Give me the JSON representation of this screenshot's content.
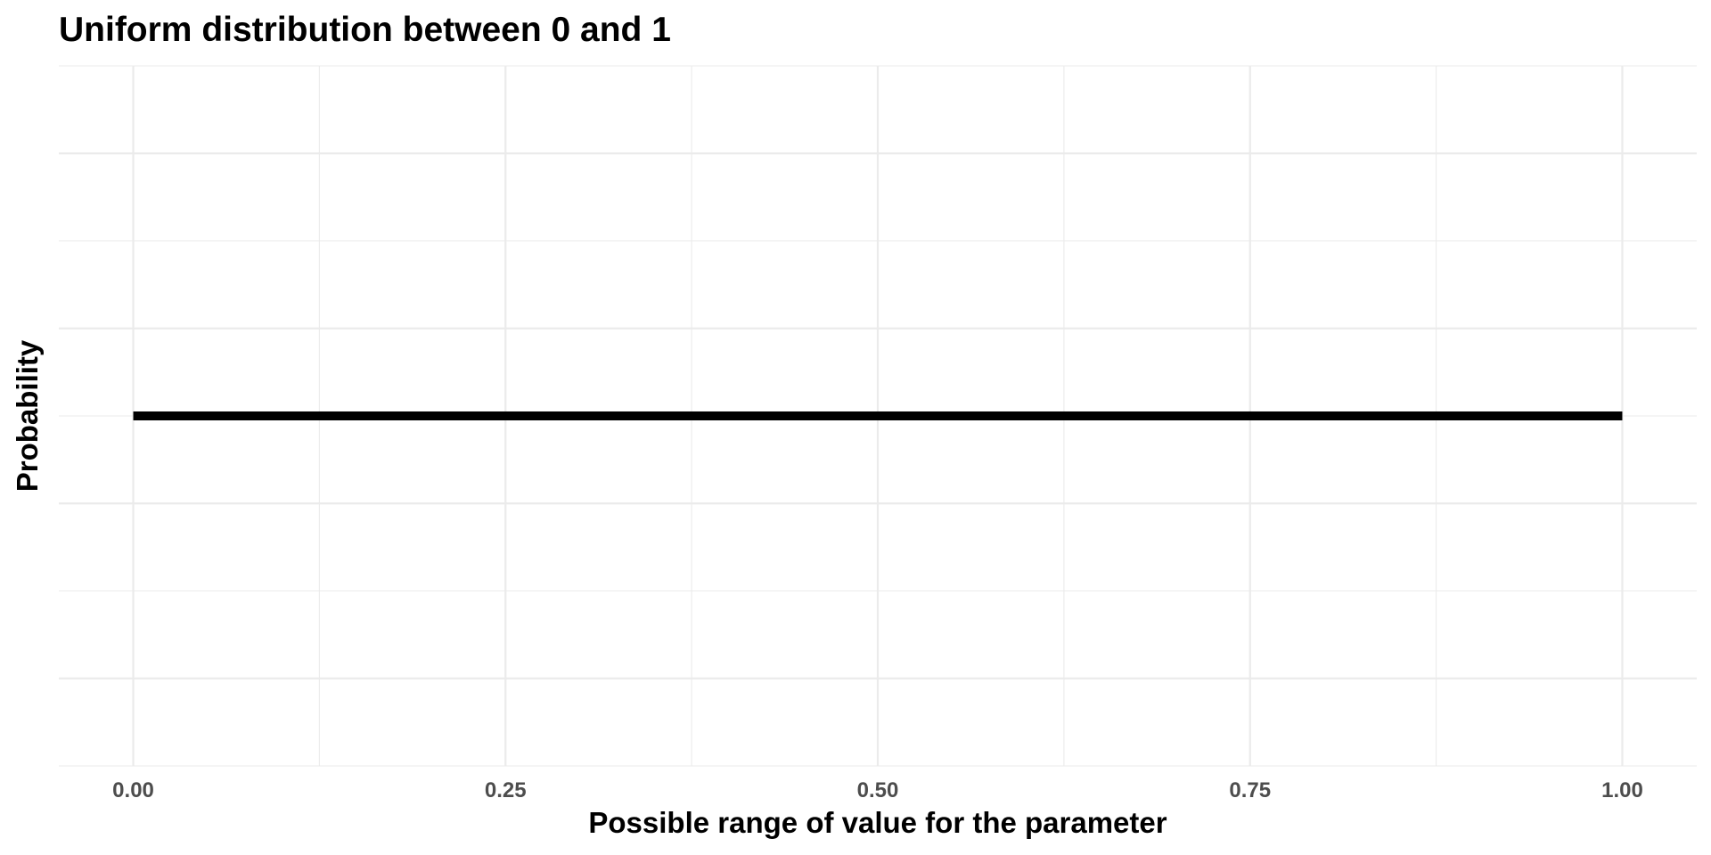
{
  "chart_data": {
    "type": "line",
    "title": "Uniform distribution between 0 and 1",
    "xlabel": "Possible range of value for the parameter",
    "ylabel": "Probability",
    "xlim": [
      -0.05,
      1.05
    ],
    "x_ticks": [
      0,
      0.25,
      0.5,
      0.75,
      1.0
    ],
    "x_tick_labels": [
      "0.00",
      "0.25",
      "0.50",
      "0.75",
      "1.00"
    ],
    "y_ticks_labeled": false,
    "grid": true,
    "series": [
      {
        "x": [
          0,
          1
        ],
        "y": [
          1,
          1
        ],
        "color": "#000000"
      }
    ]
  }
}
